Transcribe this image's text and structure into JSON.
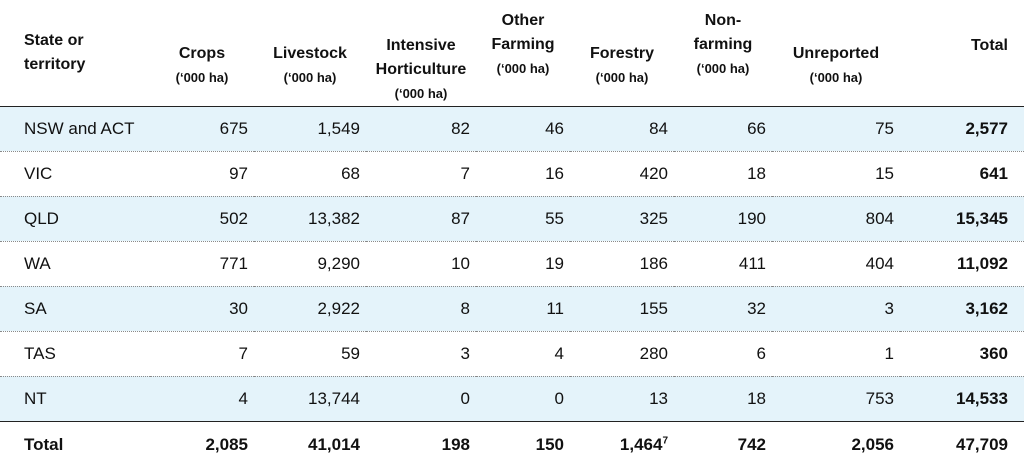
{
  "header": {
    "state": [
      "State or",
      "territory"
    ],
    "columns": [
      {
        "lines": [
          "Crops"
        ],
        "unit": "(‘000 ha)"
      },
      {
        "lines": [
          "Livestock"
        ],
        "unit": "(‘000 ha)"
      },
      {
        "lines": [
          "Intensive",
          "Horticulture"
        ],
        "unit": "(‘000 ha)"
      },
      {
        "lines": [
          "Other",
          "Farming"
        ],
        "unit": "(‘000 ha)"
      },
      {
        "lines": [
          "Forestry"
        ],
        "unit": "(‘000 ha)"
      },
      {
        "lines": [
          "Non-",
          "farming"
        ],
        "unit": "(‘000 ha)"
      },
      {
        "lines": [
          "Unreported"
        ],
        "unit": "(‘000 ha)"
      }
    ],
    "total": "Total"
  },
  "rows": [
    {
      "state": "NSW and ACT",
      "values": [
        "675",
        "1,549",
        "82",
        "46",
        "84",
        "66",
        "75"
      ],
      "total": "2,577"
    },
    {
      "state": "VIC",
      "values": [
        "97",
        "68",
        "7",
        "16",
        "420",
        "18",
        "15"
      ],
      "total": "641"
    },
    {
      "state": "QLD",
      "values": [
        "502",
        "13,382",
        "87",
        "55",
        "325",
        "190",
        "804"
      ],
      "total": "15,345"
    },
    {
      "state": "WA",
      "values": [
        "771",
        "9,290",
        "10",
        "19",
        "186",
        "411",
        "404"
      ],
      "total": "11,092"
    },
    {
      "state": "SA",
      "values": [
        "30",
        "2,922",
        "8",
        "11",
        "155",
        "32",
        "3"
      ],
      "total": "3,162"
    },
    {
      "state": "TAS",
      "values": [
        "7",
        "59",
        "3",
        "4",
        "280",
        "6",
        "1"
      ],
      "total": "360"
    },
    {
      "state": "NT",
      "values": [
        "4",
        "13,744",
        "0",
        "0",
        "13",
        "18",
        "753"
      ],
      "total": "14,533"
    }
  ],
  "total_row": {
    "label": "Total",
    "values": [
      "2,085",
      "41,014",
      "198",
      "150",
      "1,464",
      "742",
      "2,056"
    ],
    "forestry_footnote": "7",
    "total": "47,709"
  }
}
